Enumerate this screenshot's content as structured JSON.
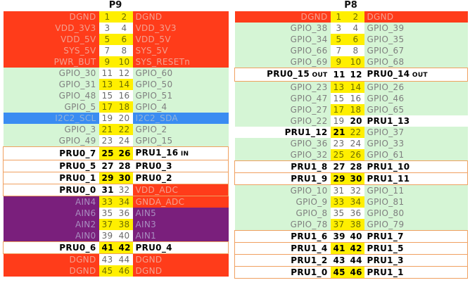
{
  "headers": {
    "left": "P9",
    "right": "P8"
  },
  "p9": [
    {
      "a": "DGND",
      "na": "1",
      "nb": "2",
      "b": "DGND",
      "ca": "red",
      "cb": "red",
      "na_c": "yellow",
      "nb_c": "yellow"
    },
    {
      "a": "VDD_3V3",
      "na": "3",
      "nb": "4",
      "b": "VDD_3V3",
      "ca": "red",
      "cb": "red",
      "na_c": "white",
      "nb_c": "white"
    },
    {
      "a": "VDD_5V",
      "na": "5",
      "nb": "6",
      "b": "VDD_5V",
      "ca": "red",
      "cb": "red",
      "na_c": "yellow",
      "nb_c": "yellow"
    },
    {
      "a": "SYS_5V",
      "na": "7",
      "nb": "8",
      "b": "SYS_5V",
      "ca": "red",
      "cb": "red",
      "na_c": "white",
      "nb_c": "white"
    },
    {
      "a": "PWR_BUT",
      "na": "9",
      "nb": "10",
      "b": "SYS_RESETn",
      "ca": "red",
      "cb": "red",
      "na_c": "yellow",
      "nb_c": "yellow"
    },
    {
      "a": "GPIO_30",
      "na": "11",
      "nb": "12",
      "b": "GPIO_60",
      "ca": "green",
      "cb": "green",
      "na_c": "white",
      "nb_c": "white"
    },
    {
      "a": "GPIO_31",
      "na": "13",
      "nb": "14",
      "b": "GPIO_50",
      "ca": "green",
      "cb": "green",
      "na_c": "yellow",
      "nb_c": "yellow"
    },
    {
      "a": "GPIO_48",
      "na": "15",
      "nb": "16",
      "b": "GPIO_51",
      "ca": "green",
      "cb": "green",
      "na_c": "white",
      "nb_c": "white"
    },
    {
      "a": "GPIO_5",
      "na": "17",
      "nb": "18",
      "b": "GPIO_4",
      "ca": "green",
      "cb": "green",
      "na_c": "yellow",
      "nb_c": "yellow"
    },
    {
      "a": "I2C2_SCL",
      "na": "19",
      "nb": "20",
      "b": "I2C2_SDA",
      "ca": "blue",
      "cb": "blue",
      "na_c": "white",
      "nb_c": "white"
    },
    {
      "a": "GPIO_3",
      "na": "21",
      "nb": "22",
      "b": "GPIO_2",
      "ca": "green",
      "cb": "green",
      "na_c": "yellow",
      "nb_c": "yellow"
    },
    {
      "a": "GPIO_49",
      "na": "23",
      "nb": "24",
      "b": "GPIO_15",
      "ca": "green",
      "cb": "green",
      "na_c": "white",
      "nb_c": "white"
    },
    {
      "a": "PRU0_7",
      "na": "25",
      "nb": "26",
      "b": "PRU1_16",
      "bs": "IN",
      "ca": "white",
      "cb": "white",
      "na_c": "byellow",
      "nb_c": "byellow",
      "box": true
    },
    {
      "a": "PRU0_5",
      "na": "27",
      "nb": "28",
      "b": "PRU0_3",
      "ca": "white",
      "cb": "white",
      "na_c": "bwhite",
      "nb_c": "bwhite",
      "box": true
    },
    {
      "a": "PRU0_1",
      "na": "29",
      "nb": "30",
      "b": "PRU0_2",
      "ca": "white",
      "cb": "white",
      "na_c": "byellow",
      "nb_c": "byellow",
      "box": true
    },
    {
      "a": "PRU0_0",
      "na": "31",
      "nb": "32",
      "b": "VDD_ADC",
      "ca": "white",
      "cb": "red",
      "na_c": "bwhite",
      "nb_c": "white",
      "box": true
    },
    {
      "a": "AIN4",
      "na": "33",
      "nb": "34",
      "b": "GNDA_ADC",
      "ca": "purple",
      "cb": "red",
      "na_c": "yellow",
      "nb_c": "yellow"
    },
    {
      "a": "AIN6",
      "na": "35",
      "nb": "36",
      "b": "AIN5",
      "ca": "purple",
      "cb": "purple",
      "na_c": "white",
      "nb_c": "white"
    },
    {
      "a": "AIN2",
      "na": "37",
      "nb": "38",
      "b": "AIN3",
      "ca": "purple",
      "cb": "purple",
      "na_c": "yellow",
      "nb_c": "yellow"
    },
    {
      "a": "AIN0",
      "na": "39",
      "nb": "40",
      "b": "AIN1",
      "ca": "purple",
      "cb": "purple",
      "na_c": "white",
      "nb_c": "white"
    },
    {
      "a": "PRU0_6",
      "na": "41",
      "nb": "42",
      "b": "PRU0_4",
      "ca": "white",
      "cb": "white",
      "na_c": "byellow",
      "nb_c": "byellow",
      "box": true
    },
    {
      "a": "DGND",
      "na": "43",
      "nb": "44",
      "b": "DGND",
      "ca": "red",
      "cb": "red",
      "na_c": "white",
      "nb_c": "white"
    },
    {
      "a": "DGND",
      "na": "45",
      "nb": "46",
      "b": "DGND",
      "ca": "red",
      "cb": "red",
      "na_c": "yellow",
      "nb_c": "yellow"
    }
  ],
  "p8": [
    {
      "a": "DGND",
      "na": "1",
      "nb": "2",
      "b": "DGND",
      "ca": "red",
      "cb": "red",
      "na_c": "yellow",
      "nb_c": "yellow"
    },
    {
      "a": "GPIO_38",
      "na": "3",
      "nb": "4",
      "b": "GPIO_39",
      "ca": "green",
      "cb": "green",
      "na_c": "white",
      "nb_c": "white"
    },
    {
      "a": "GPIO_34",
      "na": "5",
      "nb": "6",
      "b": "GPIO_35",
      "ca": "green",
      "cb": "green",
      "na_c": "yellow",
      "nb_c": "yellow"
    },
    {
      "a": "GPIO_66",
      "na": "7",
      "nb": "8",
      "b": "GPIO_67",
      "ca": "green",
      "cb": "green",
      "na_c": "white",
      "nb_c": "white"
    },
    {
      "a": "GPIO_69",
      "na": "9",
      "nb": "10",
      "b": "GPIO_68",
      "ca": "green",
      "cb": "green",
      "na_c": "yellow",
      "nb_c": "yellow"
    },
    {
      "a": "PRU0_15",
      "as": "OUT",
      "na": "11",
      "nb": "12",
      "b": "PRU0_14",
      "bs": "OUT",
      "ca": "white",
      "cb": "white",
      "na_c": "bwhite",
      "nb_c": "bwhite",
      "box": true
    },
    {
      "a": "GPIO_23",
      "na": "13",
      "nb": "14",
      "b": "GPIO_26",
      "ca": "green",
      "cb": "green",
      "na_c": "yellow",
      "nb_c": "yellow"
    },
    {
      "a": "GPIO_47",
      "na": "15",
      "nb": "16",
      "b": "GPIO_46",
      "ca": "green",
      "cb": "green",
      "na_c": "white",
      "nb_c": "white"
    },
    {
      "a": "GPIO_27",
      "na": "17",
      "nb": "18",
      "b": "GPIO_65",
      "ca": "green",
      "cb": "green",
      "na_c": "yellow",
      "nb_c": "yellow"
    },
    {
      "a": "GPIO_22",
      "na": "19",
      "nb": "20",
      "b": "PRU1_13",
      "ca": "green",
      "cb": "white",
      "na_c": "white",
      "nb_c": "bwhite"
    },
    {
      "a": "PRU1_12",
      "na": "21",
      "nb": "22",
      "b": "GPIO_37",
      "ca": "white",
      "cb": "green",
      "na_c": "byellow",
      "nb_c": "yellow"
    },
    {
      "a": "GPIO_36",
      "na": "23",
      "nb": "24",
      "b": "GPIO_33",
      "ca": "green",
      "cb": "green",
      "na_c": "white",
      "nb_c": "white"
    },
    {
      "a": "GPIO_32",
      "na": "25",
      "nb": "26",
      "b": "GPIO_61",
      "ca": "green",
      "cb": "green",
      "na_c": "yellow",
      "nb_c": "yellow"
    },
    {
      "a": "PRU1_8",
      "na": "27",
      "nb": "28",
      "b": "PRU1_10",
      "ca": "white",
      "cb": "white",
      "na_c": "bwhite",
      "nb_c": "bwhite",
      "box": true
    },
    {
      "a": "PRU1_9",
      "na": "29",
      "nb": "30",
      "b": "PRU1_11",
      "ca": "white",
      "cb": "white",
      "na_c": "byellow",
      "nb_c": "byellow",
      "box": true
    },
    {
      "a": "GPIO_10",
      "na": "31",
      "nb": "32",
      "b": "GPIO_11",
      "ca": "green",
      "cb": "green",
      "na_c": "white",
      "nb_c": "white"
    },
    {
      "a": "GPIO_9",
      "na": "33",
      "nb": "34",
      "b": "GPIO_81",
      "ca": "green",
      "cb": "green",
      "na_c": "yellow",
      "nb_c": "yellow"
    },
    {
      "a": "GPIO_8",
      "na": "35",
      "nb": "36",
      "b": "GPIO_80",
      "ca": "green",
      "cb": "green",
      "na_c": "white",
      "nb_c": "white"
    },
    {
      "a": "GPIO_78",
      "na": "37",
      "nb": "38",
      "b": "GPIO_79",
      "ca": "green",
      "cb": "green",
      "na_c": "yellow",
      "nb_c": "yellow"
    },
    {
      "a": "PRU1_6",
      "na": "39",
      "nb": "40",
      "b": "PRU1_7",
      "ca": "white",
      "cb": "white",
      "na_c": "bwhite",
      "nb_c": "bwhite",
      "box": true
    },
    {
      "a": "PRU1_4",
      "na": "41",
      "nb": "42",
      "b": "PRU1_5",
      "ca": "white",
      "cb": "white",
      "na_c": "byellow",
      "nb_c": "byellow",
      "box": true
    },
    {
      "a": "PRU1_2",
      "na": "43",
      "nb": "44",
      "b": "PRU1_3",
      "ca": "white",
      "cb": "white",
      "na_c": "bwhite",
      "nb_c": "bwhite",
      "box": true
    },
    {
      "a": "PRU1_0",
      "na": "45",
      "nb": "46",
      "b": "PRU1_1",
      "ca": "white",
      "cb": "white",
      "na_c": "byellow",
      "nb_c": "byellow",
      "box": true
    }
  ],
  "colors": {
    "red": "#ff3c1a",
    "green": "#d5f5d5",
    "purple": "#7a1f7c",
    "blue": "#3a8cf2",
    "yellow": "#ffef00",
    "white": "#ffffff"
  }
}
